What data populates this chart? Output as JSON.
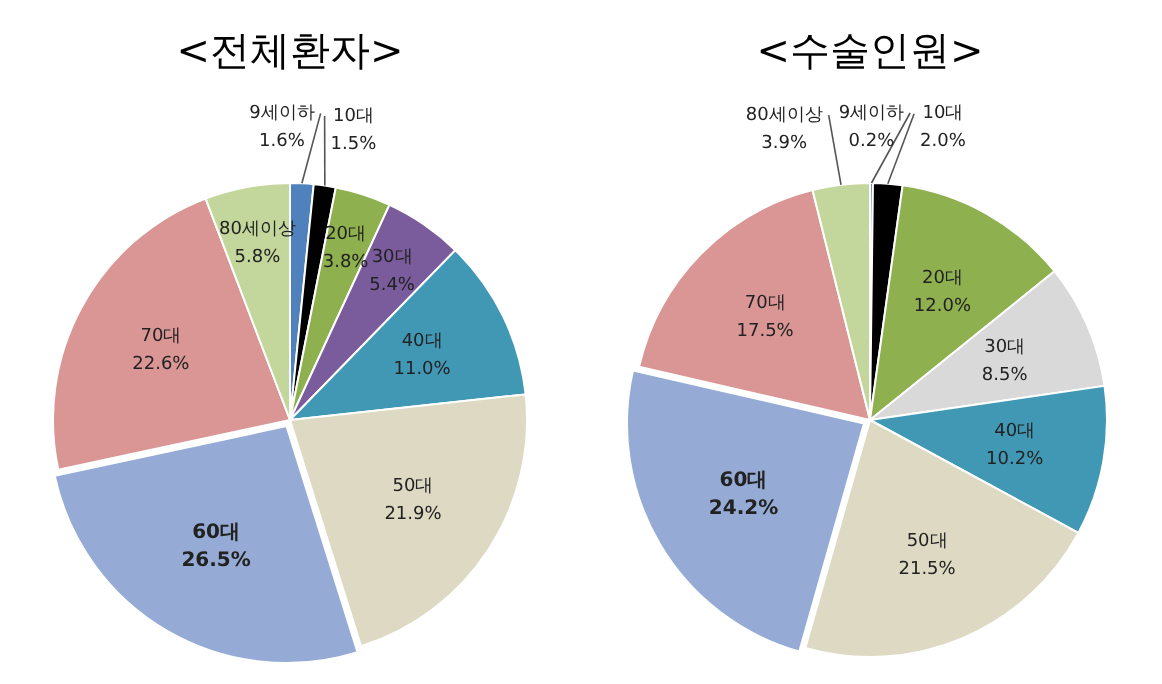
{
  "chart_data": [
    {
      "type": "pie",
      "title": "<전체환자>",
      "categories": [
        "9세이하",
        "10대",
        "20대",
        "30대",
        "40대",
        "50대",
        "60대",
        "70대",
        "80세이상"
      ],
      "values": [
        1.6,
        1.5,
        3.8,
        5.4,
        11.0,
        21.9,
        26.5,
        22.6,
        5.8
      ],
      "value_labels": [
        "1.6%",
        "1.5%",
        "3.8%",
        "5.4%",
        "11.0%",
        "21.9%",
        "26.5%",
        "22.6%",
        "5.8%"
      ],
      "colors": [
        "#4f81bd",
        "#000000",
        "#8eb04f",
        "#7a5c9c",
        "#4198b5",
        "#ddd9c3",
        "#95abd5",
        "#d99694",
        "#c3d69b"
      ]
    },
    {
      "type": "pie",
      "title": "<수술인원>",
      "categories": [
        "9세이하",
        "10대",
        "20대",
        "30대",
        "40대",
        "50대",
        "60대",
        "70대",
        "80세이상"
      ],
      "values": [
        0.2,
        2.0,
        12.0,
        8.5,
        10.2,
        21.5,
        24.2,
        17.5,
        3.9
      ],
      "value_labels": [
        "0.2%",
        "2.0%",
        "12.0%",
        "8.5%",
        "10.2%",
        "21.5%",
        "24.2%",
        "17.5%",
        "3.9%"
      ],
      "colors": [
        "#4f81bd",
        "#000000",
        "#8eb04f",
        "#d9d9d9",
        "#4198b5",
        "#ddd9c3",
        "#95abd5",
        "#d99694",
        "#c3d69b"
      ]
    }
  ]
}
